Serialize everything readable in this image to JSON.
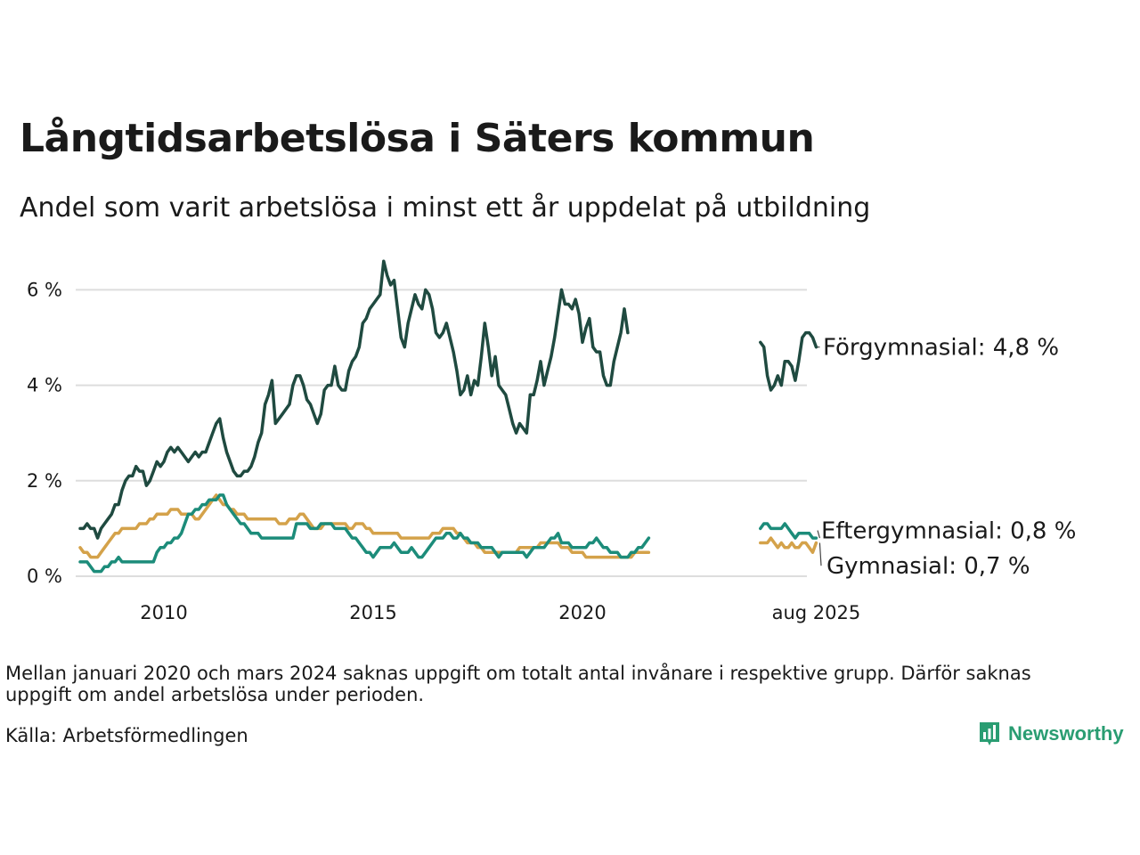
{
  "header": {
    "title": "Långtidsarbetslösa i Säters kommun",
    "subtitle": "Andel som varit arbetslösa i minst ett år uppdelat på utbildning"
  },
  "footer": {
    "note": "Mellan januari 2020 och mars 2024 saknas uppgift om totalt antal invånare i respektive grupp. Därför saknas uppgift om andel arbetslösa under perioden.",
    "source": "Källa: Arbetsförmedlingen",
    "brand": "Newsworthy",
    "brand_icon": "bar-chart-icon"
  },
  "colors": {
    "forgymnasial": "#1f4a40",
    "eftergymnasial": "#1c8c7a",
    "gymnasial": "#d4a24a",
    "grid": "#dddddd",
    "brand": "#2a9d72"
  },
  "chart_data": {
    "type": "line",
    "title": "Långtidsarbetslösa i Säters kommun",
    "subtitle": "Andel som varit arbetslösa i minst ett år uppdelat på utbildning",
    "x_ticks": [
      "2010",
      "2015",
      "2020",
      "aug 2025"
    ],
    "y_ticks": [
      "0 %",
      "2 %",
      "4 %",
      "6 %"
    ],
    "ylim": [
      0,
      6.5
    ],
    "grid": "horizontal",
    "series_labels": {
      "forgymnasial": "Förgymnasial: 4,8 %",
      "eftergymnasial": "Eftergymnasial: 0,8 %",
      "gymnasial": "Gymnasial: 0,7 %"
    },
    "series": [
      {
        "name": "Förgymnasial",
        "segments": [
          {
            "start": "2008-01",
            "values": [
              1.0,
              1.0,
              1.1,
              1.0,
              1.0,
              0.8,
              1.0,
              1.1,
              1.2,
              1.3,
              1.5,
              1.5,
              1.8,
              2.0,
              2.1,
              2.1,
              2.3,
              2.2,
              2.2,
              1.9,
              2.0,
              2.2,
              2.4,
              2.3,
              2.4,
              2.6,
              2.7,
              2.6,
              2.7,
              2.6,
              2.5,
              2.4,
              2.5,
              2.6,
              2.5,
              2.6,
              2.6,
              2.8,
              3.0,
              3.2,
              3.3,
              2.9,
              2.6,
              2.4,
              2.2,
              2.1,
              2.1,
              2.2,
              2.2,
              2.3,
              2.5,
              2.8,
              3.0,
              3.6,
              3.8,
              4.1,
              3.2,
              3.3,
              3.4,
              3.5,
              3.6,
              4.0,
              4.2,
              4.2,
              4.0,
              3.7,
              3.6,
              3.4,
              3.2,
              3.4,
              3.9,
              4.0,
              4.0,
              4.4,
              4.0,
              3.9,
              3.9,
              4.3,
              4.5,
              4.6,
              4.8,
              5.3,
              5.4,
              5.6,
              5.7,
              5.8,
              5.9,
              6.6,
              6.3,
              6.1,
              6.2,
              5.6,
              5.0,
              4.8,
              5.3,
              5.6,
              5.9,
              5.7,
              5.6,
              6.0,
              5.9,
              5.6,
              5.1,
              5.0,
              5.1,
              5.3,
              5.0,
              4.7,
              4.3,
              3.8,
              3.9,
              4.2,
              3.8,
              4.1,
              4.0,
              4.6,
              5.3,
              4.8,
              4.2,
              4.6,
              4.0,
              3.9,
              3.8,
              3.5,
              3.2,
              3.0,
              3.2,
              3.1,
              3.0,
              3.8,
              3.8,
              4.1,
              4.5,
              4.0,
              4.3,
              4.6,
              5.0,
              5.5,
              6.0,
              5.7,
              5.7,
              5.6,
              5.8,
              5.5,
              4.9,
              5.2,
              5.4,
              4.8,
              4.7,
              4.7,
              4.2,
              4.0,
              4.0,
              4.5,
              4.8,
              5.1,
              5.6,
              5.1
            ]
          },
          {
            "start": "2024-04",
            "values": [
              4.9,
              4.8,
              4.2,
              3.9,
              4.0,
              4.2,
              4.0,
              4.5,
              4.5,
              4.4,
              4.1,
              4.5,
              5.0,
              5.1,
              5.1,
              5.0,
              4.8
            ]
          }
        ]
      },
      {
        "name": "Eftergymnasial",
        "segments": [
          {
            "start": "2008-01",
            "values": [
              0.3,
              0.3,
              0.3,
              0.2,
              0.1,
              0.1,
              0.1,
              0.2,
              0.2,
              0.3,
              0.3,
              0.4,
              0.3,
              0.3,
              0.3,
              0.3,
              0.3,
              0.3,
              0.3,
              0.3,
              0.3,
              0.3,
              0.5,
              0.6,
              0.6,
              0.7,
              0.7,
              0.8,
              0.8,
              0.9,
              1.1,
              1.3,
              1.3,
              1.4,
              1.4,
              1.5,
              1.5,
              1.6,
              1.6,
              1.6,
              1.7,
              1.7,
              1.5,
              1.4,
              1.3,
              1.2,
              1.1,
              1.1,
              1.0,
              0.9,
              0.9,
              0.9,
              0.8,
              0.8,
              0.8,
              0.8,
              0.8,
              0.8,
              0.8,
              0.8,
              0.8,
              0.8,
              1.1,
              1.1,
              1.1,
              1.1,
              1.0,
              1.0,
              1.0,
              1.1,
              1.1,
              1.1,
              1.1,
              1.0,
              1.0,
              1.0,
              1.0,
              0.9,
              0.8,
              0.8,
              0.7,
              0.6,
              0.5,
              0.5,
              0.4,
              0.5,
              0.6,
              0.6,
              0.6,
              0.6,
              0.7,
              0.6,
              0.5,
              0.5,
              0.5,
              0.6,
              0.5,
              0.4,
              0.4,
              0.5,
              0.6,
              0.7,
              0.8,
              0.8,
              0.8,
              0.9,
              0.9,
              0.8,
              0.8,
              0.9,
              0.8,
              0.8,
              0.7,
              0.7,
              0.7,
              0.6,
              0.6,
              0.6,
              0.6,
              0.5,
              0.4,
              0.5,
              0.5,
              0.5,
              0.5,
              0.5,
              0.5,
              0.5,
              0.4,
              0.5,
              0.6,
              0.6,
              0.6,
              0.6,
              0.7,
              0.8,
              0.8,
              0.9,
              0.7,
              0.7,
              0.7,
              0.6,
              0.6,
              0.6,
              0.6,
              0.6,
              0.7,
              0.7,
              0.8,
              0.7,
              0.6,
              0.6,
              0.5,
              0.5,
              0.5,
              0.4,
              0.4,
              0.4,
              0.5,
              0.5,
              0.6,
              0.6,
              0.7,
              0.8
            ]
          },
          {
            "start": "2024-04",
            "values": [
              1.0,
              1.1,
              1.1,
              1.0,
              1.0,
              1.0,
              1.0,
              1.1,
              1.0,
              0.9,
              0.8,
              0.9,
              0.9,
              0.9,
              0.9,
              0.8,
              0.8
            ]
          }
        ]
      },
      {
        "name": "Gymnasial",
        "segments": [
          {
            "start": "2008-01",
            "values": [
              0.6,
              0.5,
              0.5,
              0.4,
              0.4,
              0.4,
              0.5,
              0.6,
              0.7,
              0.8,
              0.9,
              0.9,
              1.0,
              1.0,
              1.0,
              1.0,
              1.0,
              1.1,
              1.1,
              1.1,
              1.2,
              1.2,
              1.3,
              1.3,
              1.3,
              1.3,
              1.4,
              1.4,
              1.4,
              1.3,
              1.3,
              1.3,
              1.3,
              1.2,
              1.2,
              1.3,
              1.4,
              1.5,
              1.6,
              1.7,
              1.6,
              1.5,
              1.5,
              1.4,
              1.4,
              1.3,
              1.3,
              1.3,
              1.2,
              1.2,
              1.2,
              1.2,
              1.2,
              1.2,
              1.2,
              1.2,
              1.2,
              1.1,
              1.1,
              1.1,
              1.2,
              1.2,
              1.2,
              1.3,
              1.3,
              1.2,
              1.1,
              1.0,
              1.0,
              1.0,
              1.1,
              1.1,
              1.1,
              1.1,
              1.1,
              1.1,
              1.1,
              1.0,
              1.0,
              1.1,
              1.1,
              1.1,
              1.0,
              1.0,
              0.9,
              0.9,
              0.9,
              0.9,
              0.9,
              0.9,
              0.9,
              0.9,
              0.8,
              0.8,
              0.8,
              0.8,
              0.8,
              0.8,
              0.8,
              0.8,
              0.8,
              0.9,
              0.9,
              0.9,
              1.0,
              1.0,
              1.0,
              1.0,
              0.9,
              0.9,
              0.8,
              0.7,
              0.7,
              0.7,
              0.6,
              0.6,
              0.5,
              0.5,
              0.5,
              0.5,
              0.5,
              0.5,
              0.5,
              0.5,
              0.5,
              0.5,
              0.6,
              0.6,
              0.6,
              0.6,
              0.6,
              0.6,
              0.7,
              0.7,
              0.7,
              0.7,
              0.7,
              0.7,
              0.6,
              0.6,
              0.6,
              0.5,
              0.5,
              0.5,
              0.5,
              0.4,
              0.4,
              0.4,
              0.4,
              0.4,
              0.4,
              0.4,
              0.4,
              0.4,
              0.4,
              0.4,
              0.4,
              0.4,
              0.4,
              0.5,
              0.5,
              0.5,
              0.5,
              0.5
            ]
          },
          {
            "start": "2024-04",
            "values": [
              0.7,
              0.7,
              0.7,
              0.8,
              0.7,
              0.6,
              0.7,
              0.6,
              0.6,
              0.7,
              0.6,
              0.6,
              0.7,
              0.7,
              0.6,
              0.5,
              0.7
            ]
          }
        ]
      }
    ]
  }
}
